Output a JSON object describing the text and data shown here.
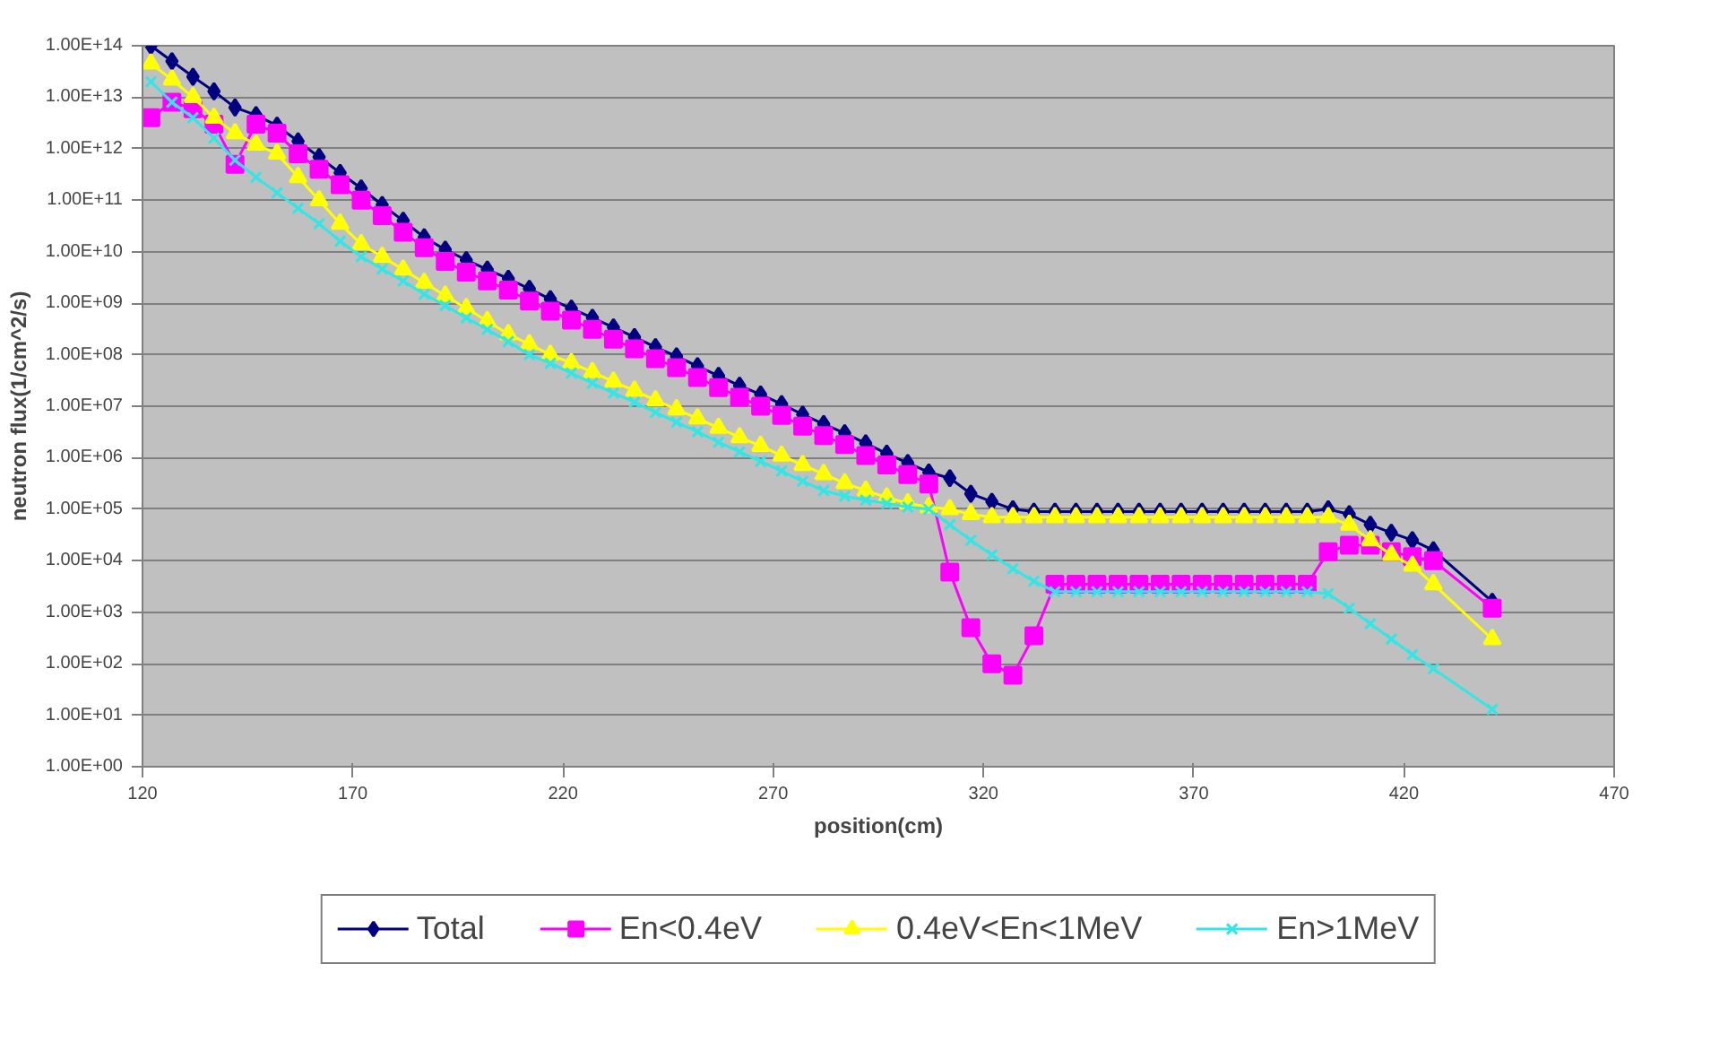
{
  "chart_data": {
    "type": "line",
    "xlabel": "position(cm)",
    "ylabel": "neutron flux(1/cm^2/s)",
    "log": "y",
    "grid": "y",
    "legend": "bottom",
    "x": [
      122,
      127,
      132,
      137,
      142,
      147,
      152,
      157,
      162,
      167,
      172,
      177,
      182,
      187,
      192,
      197,
      202,
      207,
      212,
      217,
      222,
      227,
      232,
      237,
      242,
      247,
      252,
      257,
      262,
      267,
      272,
      277,
      282,
      287,
      292,
      297,
      302,
      307,
      312,
      317,
      322,
      327,
      332,
      337,
      342,
      347,
      352,
      357,
      362,
      367,
      372,
      377,
      382,
      387,
      392,
      397,
      402,
      407,
      412,
      417,
      422,
      427,
      441
    ],
    "xlim": [
      120,
      470
    ],
    "xticks": [
      120,
      170,
      220,
      270,
      320,
      370,
      420,
      470
    ],
    "ylim": [
      1,
      100000000000000.0
    ],
    "yticks": [
      {
        "value": 1,
        "label": "1.00E+00"
      },
      {
        "value": 10,
        "label": "1.00E+01"
      },
      {
        "value": 100,
        "label": "1.00E+02"
      },
      {
        "value": 1000,
        "label": "1.00E+03"
      },
      {
        "value": 10000.0,
        "label": "1.00E+04"
      },
      {
        "value": 100000.0,
        "label": "1.00E+05"
      },
      {
        "value": 1000000.0,
        "label": "1.00E+06"
      },
      {
        "value": 10000000.0,
        "label": "1.00E+07"
      },
      {
        "value": 100000000.0,
        "label": "1.00E+08"
      },
      {
        "value": 1000000000.0,
        "label": "1.00E+09"
      },
      {
        "value": 10000000000.0,
        "label": "1.00E+10"
      },
      {
        "value": 100000000000.0,
        "label": "1.00E+11"
      },
      {
        "value": 1000000000000.0,
        "label": "1.00E+12"
      },
      {
        "value": 10000000000000.0,
        "label": "1.00E+13"
      },
      {
        "value": 100000000000000.0,
        "label": "1.00E+14"
      }
    ],
    "series": [
      {
        "name": "Total",
        "color": "#000080",
        "marker": "diamond",
        "values": [
          100000000000000.0,
          50000000000000.0,
          25000000000000.0,
          13000000000000.0,
          6300000000000.0,
          4500000000000.0,
          2800000000000.0,
          1400000000000.0,
          690000000000.0,
          340000000000.0,
          170000000000.0,
          81000000000.0,
          40000000000.0,
          19000000000.0,
          11000000000.0,
          6900000000.0,
          4500000000.0,
          3000000000.0,
          1900000000.0,
          1200000000.0,
          790000000.0,
          520000000.0,
          340000000.0,
          220000000.0,
          140000000.0,
          93000000.0,
          60000000.0,
          39000000.0,
          25000000.0,
          17000000.0,
          11000000.0,
          6900000.0,
          4500000.0,
          3000000.0,
          1900000.0,
          1200000.0,
          790000.0,
          520000.0,
          400000.0,
          200000.0,
          140000.0,
          100000.0,
          90000.0,
          90000.0,
          90000.0,
          90000.0,
          90000.0,
          90000.0,
          90000.0,
          90000.0,
          90000.0,
          90000.0,
          90000.0,
          90000.0,
          90000.0,
          90000.0,
          100000.0,
          80000.0,
          50000.0,
          35000.0,
          25000.0,
          16000.0,
          1600.0
        ]
      },
      {
        "name": "En<0.4eV",
        "color": "#ff00ff",
        "marker": "square",
        "values": [
          4000000000000.0,
          8000000000000.0,
          6000000000000.0,
          3000000000000.0,
          500000000000.0,
          3000000000000.0,
          2000000000000.0,
          800000000000.0,
          400000000000.0,
          200000000000.0,
          100000000000.0,
          50000000000.0,
          24000000000.0,
          12000000000.0,
          6500000000.0,
          4000000000.0,
          2700000000.0,
          1800000000.0,
          1100000000.0,
          700000000.0,
          470000000.0,
          310000000.0,
          200000000.0,
          130000000.0,
          84000000.0,
          56000000.0,
          36000000.0,
          23000000.0,
          15000000.0,
          10000000.0,
          6600000.0,
          4100000.0,
          2700000.0,
          1800000.0,
          1100000.0,
          720000.0,
          470000.0,
          310000.0,
          6000.0,
          500.0,
          100.0,
          60.0,
          350.0,
          3500.0,
          3500.0,
          3500.0,
          3500.0,
          3500.0,
          3500.0,
          3500.0,
          3500.0,
          3500.0,
          3500.0,
          3500.0,
          3500.0,
          3500.0,
          15000.0,
          20000.0,
          20000.0,
          15000.0,
          12000.0,
          10000.0,
          1200.0
        ]
      },
      {
        "name": "0.4eV<En<1MeV",
        "color": "#ffff00",
        "marker": "triangle",
        "values": [
          45000000000000.0,
          22000000000000.0,
          10000000000000.0,
          4000000000000.0,
          2000000000000.0,
          1200000000000.0,
          800000000000.0,
          280000000000.0,
          100000000000.0,
          35000000000.0,
          14000000000.0,
          8000000000.0,
          4500000000.0,
          2500000000.0,
          1400000000.0,
          800000000.0,
          450000000.0,
          250000000.0,
          160000000.0,
          100000000.0,
          69000000.0,
          46000000.0,
          30000000.0,
          20000000.0,
          13000000.0,
          8700000.0,
          5800000.0,
          3800000.0,
          2500000.0,
          1700000.0,
          1100000.0,
          720000.0,
          480000.0,
          320000.0,
          230000.0,
          170000.0,
          130000.0,
          110000.0,
          100000.0,
          80000.0,
          70000.0,
          70000.0,
          70000.0,
          70000.0,
          70000.0,
          70000.0,
          70000.0,
          70000.0,
          70000.0,
          70000.0,
          70000.0,
          70000.0,
          70000.0,
          70000.0,
          70000.0,
          70000.0,
          70000.0,
          50000.0,
          25000.0,
          13000.0,
          8000.0,
          3500.0,
          300.0
        ]
      },
      {
        "name": "En>1MeV",
        "color": "#33e6e6",
        "marker": "x",
        "values": [
          20000000000000.0,
          8000000000000.0,
          4000000000000.0,
          1600000000000.0,
          600000000000.0,
          280000000000.0,
          140000000000.0,
          70000000000.0,
          35000000000.0,
          16000000000.0,
          8000000000.0,
          4600000000.0,
          2700000000.0,
          1500000000.0,
          900000000.0,
          520000000.0,
          310000000.0,
          180000000.0,
          100000000.0,
          68000000.0,
          44000000.0,
          28000000.0,
          18000000.0,
          12000000.0,
          7600000.0,
          4900000.0,
          3200000.0,
          2000000.0,
          1300000.0,
          850000.0,
          550000.0,
          350000.0,
          230000.0,
          180000.0,
          150000.0,
          130000.0,
          110000.0,
          100000.0,
          50000.0,
          25000.0,
          13000.0,
          7000.0,
          4000.0,
          2500.0,
          2500.0,
          2500.0,
          2500.0,
          2500.0,
          2500.0,
          2500.0,
          2500.0,
          2500.0,
          2500.0,
          2500.0,
          2500.0,
          2500.0,
          2300.0,
          1200.0,
          600.0,
          300.0,
          150.0,
          80.0,
          13.0
        ]
      }
    ]
  }
}
